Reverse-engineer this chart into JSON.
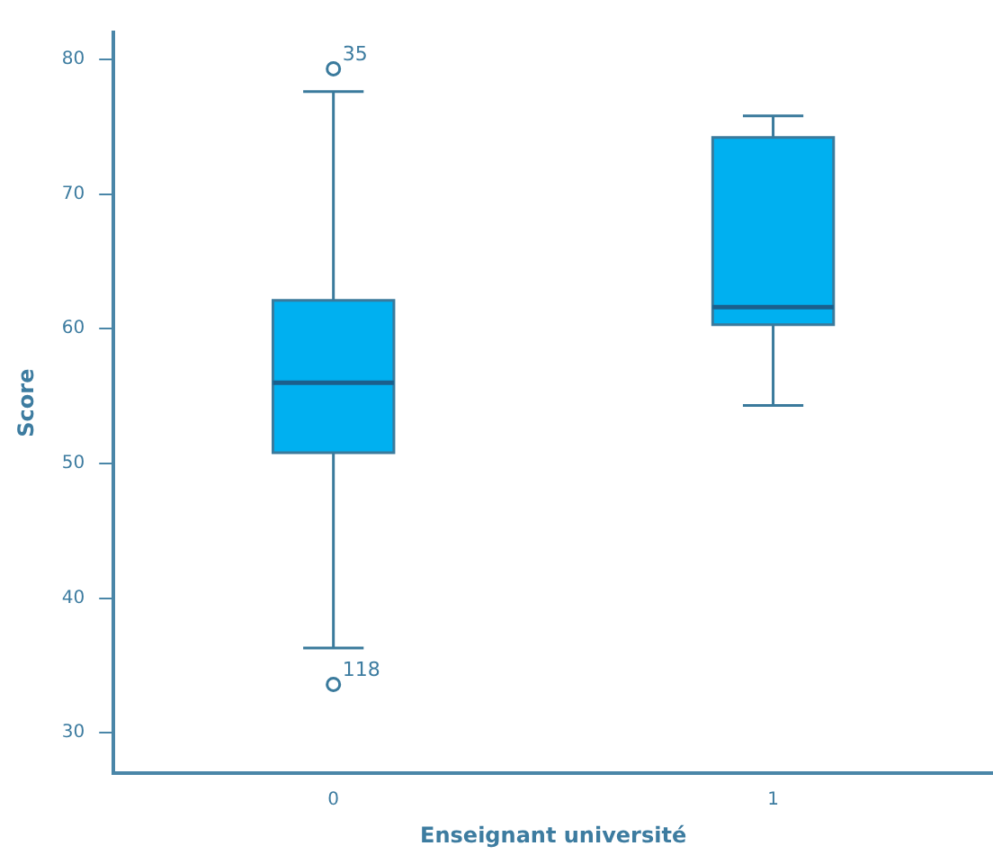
{
  "chart_data": {
    "type": "box",
    "xlabel": "Enseignant université",
    "ylabel": "Score",
    "categories": [
      "0",
      "1"
    ],
    "color": "#00b0f0",
    "boxes": [
      {
        "low": 36.3,
        "q1": 50.8,
        "median": 56,
        "q3": 62.1,
        "high": 77.6,
        "outliers": [
          79.3,
          33.6
        ]
      },
      {
        "low": 54.3,
        "q1": 60.3,
        "median": 61.6,
        "q3": 74.2,
        "high": 75.8
      }
    ],
    "ylim": [
      27,
      82
    ],
    "yticks": [
      30,
      40,
      50,
      60,
      70,
      80
    ],
    "grid": false,
    "annotations": [
      "35",
      "118"
    ]
  }
}
